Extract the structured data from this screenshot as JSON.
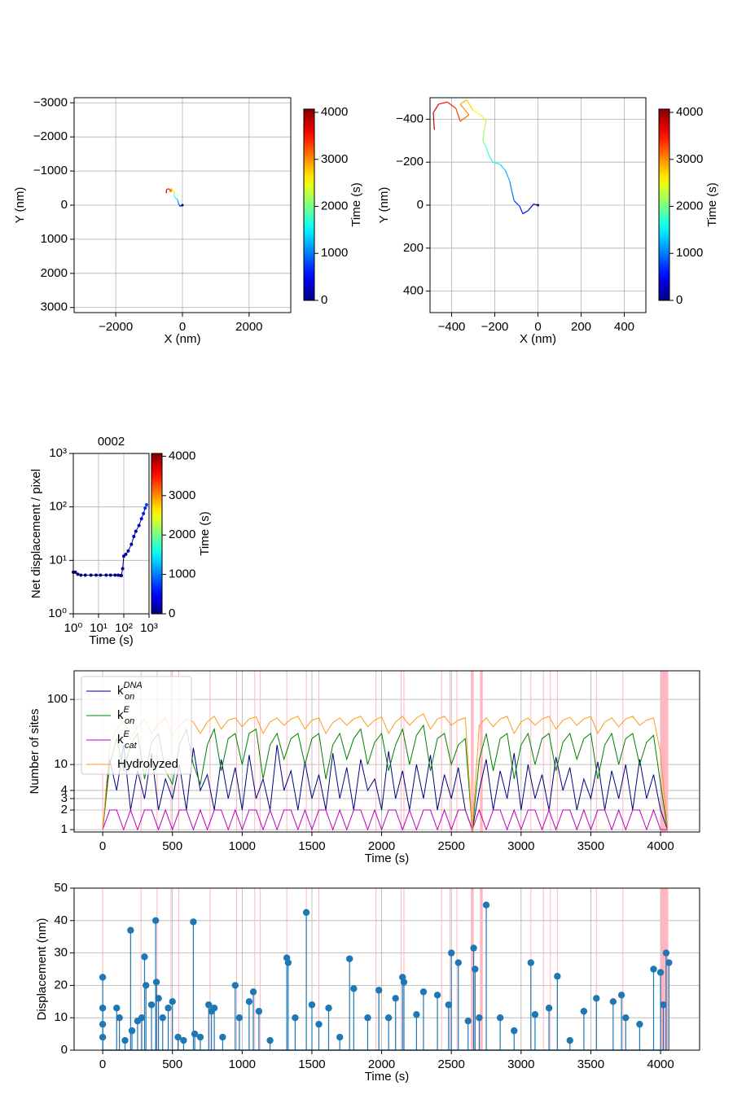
{
  "chart_data": [
    {
      "type": "trajectory",
      "xlabel": "X (nm)",
      "ylabel": "Y (nm)",
      "grid": true,
      "xlim": [
        -3250,
        3250
      ],
      "xticks": [
        {
          "value": -2000,
          "label": "−2000"
        },
        0,
        2000
      ],
      "ylim": [
        3150,
        -3150
      ],
      "yticks": [
        {
          "value": -3000,
          "label": "−3000"
        },
        {
          "value": -2000,
          "label": "−2000"
        },
        {
          "value": -1000,
          "label": "−1000"
        },
        0,
        1000,
        2000,
        3000
      ],
      "x": [
        0,
        -20,
        -45,
        -70,
        -85,
        -110,
        -120,
        -130,
        -150,
        -175,
        -210,
        -230,
        -240,
        -255,
        -250,
        -240,
        -265,
        -300,
        -330,
        -360,
        -320,
        -360,
        -380,
        -420,
        -460,
        -485,
        -480
      ],
      "y": [
        0,
        -5,
        25,
        40,
        5,
        -20,
        -60,
        -110,
        -160,
        -190,
        -200,
        -240,
        -270,
        -300,
        -340,
        -390,
        -420,
        -440,
        -490,
        -470,
        -420,
        -390,
        -450,
        -480,
        -470,
        -430,
        -350
      ],
      "t": [
        0,
        150,
        300,
        450,
        600,
        750,
        900,
        1050,
        1200,
        1350,
        1500,
        1650,
        1800,
        1950,
        2100,
        2250,
        2400,
        2550,
        2700,
        2850,
        3000,
        3150,
        3300,
        3450,
        3600,
        3750,
        3900
      ],
      "colorbar": {
        "label": "Time (s)",
        "colormap": "jet",
        "lim": [
          0,
          4070
        ],
        "ticks": [
          0,
          1000,
          2000,
          3000,
          4000
        ]
      }
    },
    {
      "type": "trajectory",
      "xlabel": "X (nm)",
      "ylabel": "Y (nm)",
      "grid": true,
      "xlim": [
        -500,
        500
      ],
      "xticks": [
        {
          "value": -400,
          "label": "−400"
        },
        {
          "value": -200,
          "label": "−200"
        },
        0,
        200,
        400
      ],
      "ylim": [
        500,
        -500
      ],
      "yticks": [
        {
          "value": -400,
          "label": "−400"
        },
        {
          "value": -200,
          "label": "−200"
        },
        0,
        200,
        400
      ],
      "x": [
        0,
        -20,
        -45,
        -70,
        -85,
        -110,
        -120,
        -130,
        -150,
        -175,
        -210,
        -230,
        -240,
        -255,
        -250,
        -240,
        -265,
        -300,
        -330,
        -360,
        -320,
        -360,
        -380,
        -420,
        -460,
        -485,
        -480
      ],
      "y": [
        0,
        -5,
        25,
        40,
        5,
        -20,
        -60,
        -110,
        -160,
        -190,
        -200,
        -240,
        -270,
        -300,
        -340,
        -390,
        -420,
        -440,
        -490,
        -470,
        -420,
        -390,
        -450,
        -480,
        -470,
        -430,
        -350
      ],
      "t": [
        0,
        150,
        300,
        450,
        600,
        750,
        900,
        1050,
        1200,
        1350,
        1500,
        1650,
        1800,
        1950,
        2100,
        2250,
        2400,
        2550,
        2700,
        2850,
        3000,
        3150,
        3300,
        3450,
        3600,
        3750,
        3900
      ],
      "colorbar": {
        "label": "Time (s)",
        "colormap": "jet",
        "lim": [
          0,
          4070
        ],
        "ticks": [
          0,
          1000,
          2000,
          3000,
          4000
        ]
      }
    },
    {
      "type": "scatter",
      "title": "0002",
      "xlabel": "Time (s)",
      "ylabel": "Net displacement / pixel",
      "grid": true,
      "xlog": true,
      "ylog": true,
      "xlim": [
        1,
        1000
      ],
      "xticks": [
        {
          "value": 1,
          "label": "10⁰"
        },
        {
          "value": 10,
          "label": "10¹"
        },
        {
          "value": 100,
          "label": "10²"
        },
        {
          "value": 1000,
          "label": "10³"
        }
      ],
      "ylim": [
        1,
        1000
      ],
      "yticks": [
        {
          "value": 1,
          "label": "10⁰"
        },
        {
          "value": 10,
          "label": "10¹"
        },
        {
          "value": 100,
          "label": "10²"
        },
        {
          "value": 1000,
          "label": "10³"
        }
      ],
      "x": [
        1,
        1.2,
        1.5,
        2,
        3,
        5,
        8,
        12,
        20,
        30,
        45,
        60,
        75,
        80,
        90,
        100,
        120,
        150,
        200,
        250,
        300,
        400,
        500,
        600,
        700,
        800
      ],
      "y": [
        6,
        6,
        5.5,
        5.3,
        5.3,
        5.3,
        5.3,
        5.3,
        5.3,
        5.3,
        5.3,
        5.3,
        5.2,
        5.2,
        7,
        12,
        13,
        15,
        20,
        28,
        35,
        45,
        60,
        75,
        95,
        110
      ],
      "colorbar": {
        "label": "Time (s)",
        "colormap": "jet",
        "lim": [
          0,
          4070
        ],
        "ticks": [
          0,
          1000,
          2000,
          3000,
          4000
        ]
      }
    },
    {
      "type": "line",
      "xlabel": "Time (s)",
      "ylabel": "Number of sites",
      "grid": true,
      "ylog": true,
      "legend": "upper left",
      "xlim": [
        -205,
        4280
      ],
      "xticks": [
        0,
        500,
        1000,
        1500,
        2000,
        2500,
        3000,
        3500,
        4000
      ],
      "ylim": [
        0.92,
        275
      ],
      "yticks": [
        1,
        2,
        3,
        4,
        10,
        100
      ],
      "events": [
        [
          0,
          0
        ],
        [
          275,
          275
        ],
        [
          390,
          390
        ],
        [
          490,
          490
        ],
        [
          545,
          545
        ],
        [
          770,
          770
        ],
        [
          960,
          960
        ],
        [
          1090,
          1090
        ],
        [
          1130,
          1130
        ],
        [
          1320,
          1320
        ],
        [
          1460,
          1460
        ],
        [
          1550,
          1550
        ],
        [
          1960,
          1960
        ],
        [
          2140,
          2140
        ],
        [
          2160,
          2160
        ],
        [
          2430,
          2430
        ],
        [
          2490,
          2490
        ],
        [
          2540,
          2540
        ],
        [
          2640,
          2660
        ],
        [
          2705,
          2725
        ],
        [
          3070,
          3070
        ],
        [
          3160,
          3160
        ],
        [
          3210,
          3210
        ],
        [
          3260,
          3260
        ],
        [
          3540,
          3540
        ],
        [
          3730,
          3730
        ],
        [
          4000,
          4055
        ]
      ],
      "event_color": "#ffb6c1",
      "x": [
        0,
        50,
        100,
        150,
        200,
        250,
        300,
        350,
        400,
        450,
        500,
        550,
        600,
        650,
        700,
        750,
        800,
        850,
        900,
        950,
        1000,
        1050,
        1100,
        1150,
        1200,
        1250,
        1300,
        1350,
        1400,
        1450,
        1500,
        1550,
        1600,
        1650,
        1700,
        1750,
        1800,
        1850,
        1900,
        1950,
        2000,
        2050,
        2100,
        2150,
        2200,
        2250,
        2300,
        2350,
        2400,
        2450,
        2500,
        2550,
        2600,
        2650,
        2700,
        2750,
        2800,
        2850,
        2900,
        2950,
        3000,
        3050,
        3100,
        3150,
        3200,
        3250,
        3300,
        3350,
        3400,
        3450,
        3500,
        3550,
        3600,
        3650,
        3700,
        3750,
        3800,
        3850,
        3900,
        3950,
        4000,
        4050
      ],
      "series": [
        {
          "name": "k_on^DNA",
          "color": "#000080",
          "values": [
            1,
            12,
            4,
            20,
            2,
            8,
            3,
            15,
            2,
            6,
            3,
            10,
            2,
            18,
            4,
            7,
            2,
            12,
            3,
            9,
            2,
            14,
            3,
            6,
            2,
            20,
            4,
            8,
            2,
            11,
            3,
            7,
            2,
            15,
            3,
            9,
            2,
            12,
            4,
            6,
            2,
            16,
            3,
            8,
            2,
            10,
            3,
            14,
            2,
            7,
            3,
            9,
            2,
            1,
            4,
            12,
            2,
            8,
            3,
            15,
            2,
            10,
            3,
            7,
            2,
            13,
            4,
            9,
            2,
            6,
            3,
            11,
            2,
            8,
            3,
            10,
            2,
            12,
            3,
            7,
            2,
            1
          ]
        },
        {
          "name": "k_on^E",
          "color": "#008000",
          "values": [
            1,
            10,
            25,
            8,
            20,
            30,
            6,
            22,
            30,
            8,
            5,
            20,
            35,
            10,
            5,
            20,
            35,
            8,
            25,
            30,
            10,
            30,
            35,
            6,
            20,
            30,
            12,
            25,
            30,
            10,
            25,
            30,
            6,
            20,
            30,
            12,
            25,
            35,
            10,
            22,
            30,
            8,
            20,
            35,
            10,
            28,
            40,
            8,
            25,
            30,
            10,
            20,
            25,
            1,
            12,
            30,
            8,
            25,
            30,
            6,
            20,
            30,
            10,
            25,
            30,
            8,
            22,
            30,
            12,
            25,
            30,
            6,
            20,
            30,
            10,
            25,
            30,
            10,
            22,
            28,
            5,
            1
          ]
        },
        {
          "name": "k_cat^E",
          "color": "#bf00bf",
          "values": [
            1,
            2,
            2,
            1,
            2,
            1,
            2,
            2,
            1,
            2,
            1,
            2,
            2,
            1,
            2,
            1,
            2,
            2,
            1,
            2,
            1,
            2,
            2,
            1,
            2,
            1,
            2,
            2,
            1,
            2,
            1,
            2,
            2,
            1,
            2,
            1,
            2,
            2,
            1,
            2,
            1,
            2,
            2,
            1,
            2,
            1,
            2,
            2,
            1,
            2,
            1,
            2,
            2,
            1,
            2,
            1,
            2,
            2,
            1,
            2,
            1,
            2,
            2,
            1,
            2,
            1,
            2,
            2,
            1,
            2,
            1,
            2,
            2,
            1,
            2,
            1,
            2,
            2,
            1,
            2,
            1,
            1
          ]
        },
        {
          "name": "Hydrolyzed",
          "color": "#ff9a1e",
          "values": [
            1,
            20,
            35,
            45,
            25,
            38,
            50,
            30,
            42,
            52,
            28,
            40,
            50,
            45,
            30,
            45,
            55,
            35,
            48,
            52,
            38,
            50,
            54,
            30,
            45,
            52,
            40,
            50,
            55,
            35,
            48,
            52,
            30,
            44,
            52,
            40,
            50,
            55,
            38,
            48,
            54,
            30,
            45,
            55,
            40,
            52,
            60,
            35,
            50,
            55,
            40,
            48,
            52,
            1,
            40,
            52,
            38,
            50,
            55,
            30,
            45,
            52,
            40,
            50,
            55,
            35,
            48,
            53,
            40,
            50,
            55,
            30,
            45,
            52,
            38,
            50,
            55,
            40,
            48,
            52,
            15,
            1
          ]
        }
      ]
    },
    {
      "type": "stem",
      "xlabel": "Time (s)",
      "ylabel": "Displacement (nm)",
      "grid": true,
      "color": "#1f77b4",
      "xlim": [
        -205,
        4280
      ],
      "xticks": [
        0,
        500,
        1000,
        1500,
        2000,
        2500,
        3000,
        3500,
        4000
      ],
      "ylim": [
        0,
        50
      ],
      "yticks": [
        0,
        10,
        20,
        30,
        40,
        50
      ],
      "events": [
        [
          0,
          0
        ],
        [
          275,
          275
        ],
        [
          390,
          390
        ],
        [
          490,
          490
        ],
        [
          545,
          545
        ],
        [
          770,
          770
        ],
        [
          960,
          960
        ],
        [
          1090,
          1090
        ],
        [
          1130,
          1130
        ],
        [
          1320,
          1320
        ],
        [
          1460,
          1460
        ],
        [
          1550,
          1550
        ],
        [
          1960,
          1960
        ],
        [
          2140,
          2140
        ],
        [
          2160,
          2160
        ],
        [
          2430,
          2430
        ],
        [
          2490,
          2490
        ],
        [
          2540,
          2540
        ],
        [
          2640,
          2660
        ],
        [
          2705,
          2725
        ],
        [
          3070,
          3070
        ],
        [
          3160,
          3160
        ],
        [
          3210,
          3210
        ],
        [
          3260,
          3260
        ],
        [
          3540,
          3540
        ],
        [
          3730,
          3730
        ],
        [
          4000,
          4055
        ]
      ],
      "event_color": "#ffb6c1",
      "x": [
        0,
        0,
        0,
        0,
        100,
        120,
        160,
        200,
        210,
        250,
        280,
        300,
        310,
        350,
        380,
        385,
        400,
        430,
        470,
        500,
        540,
        580,
        650,
        660,
        700,
        760,
        780,
        800,
        860,
        950,
        980,
        1050,
        1080,
        1120,
        1200,
        1320,
        1330,
        1380,
        1460,
        1500,
        1550,
        1620,
        1700,
        1770,
        1800,
        1900,
        1980,
        2050,
        2100,
        2150,
        2160,
        2250,
        2300,
        2400,
        2480,
        2500,
        2550,
        2620,
        2660,
        2670,
        2700,
        2750,
        2850,
        2950,
        3070,
        3100,
        3200,
        3260,
        3350,
        3450,
        3540,
        3660,
        3720,
        3750,
        3850,
        3950,
        4000,
        4020,
        4040,
        4060
      ],
      "values": [
        22.5,
        13,
        8,
        4,
        13,
        10,
        3,
        37,
        6,
        9,
        10,
        28.8,
        20,
        14,
        40,
        21,
        16,
        10,
        13,
        15,
        4,
        3,
        39.6,
        5,
        4,
        14,
        12,
        13,
        4,
        20,
        10,
        15,
        18,
        12,
        3,
        28.5,
        27,
        10,
        42.5,
        14,
        8,
        13,
        4,
        28.2,
        19,
        10,
        18.5,
        10,
        16,
        22.5,
        21,
        11,
        18,
        17,
        14,
        30,
        27,
        9,
        31.5,
        25,
        10,
        44.8,
        10,
        6,
        27,
        11,
        13,
        22.8,
        3,
        12,
        16,
        15,
        17,
        10,
        8,
        25,
        24,
        14,
        30,
        27
      ]
    }
  ]
}
